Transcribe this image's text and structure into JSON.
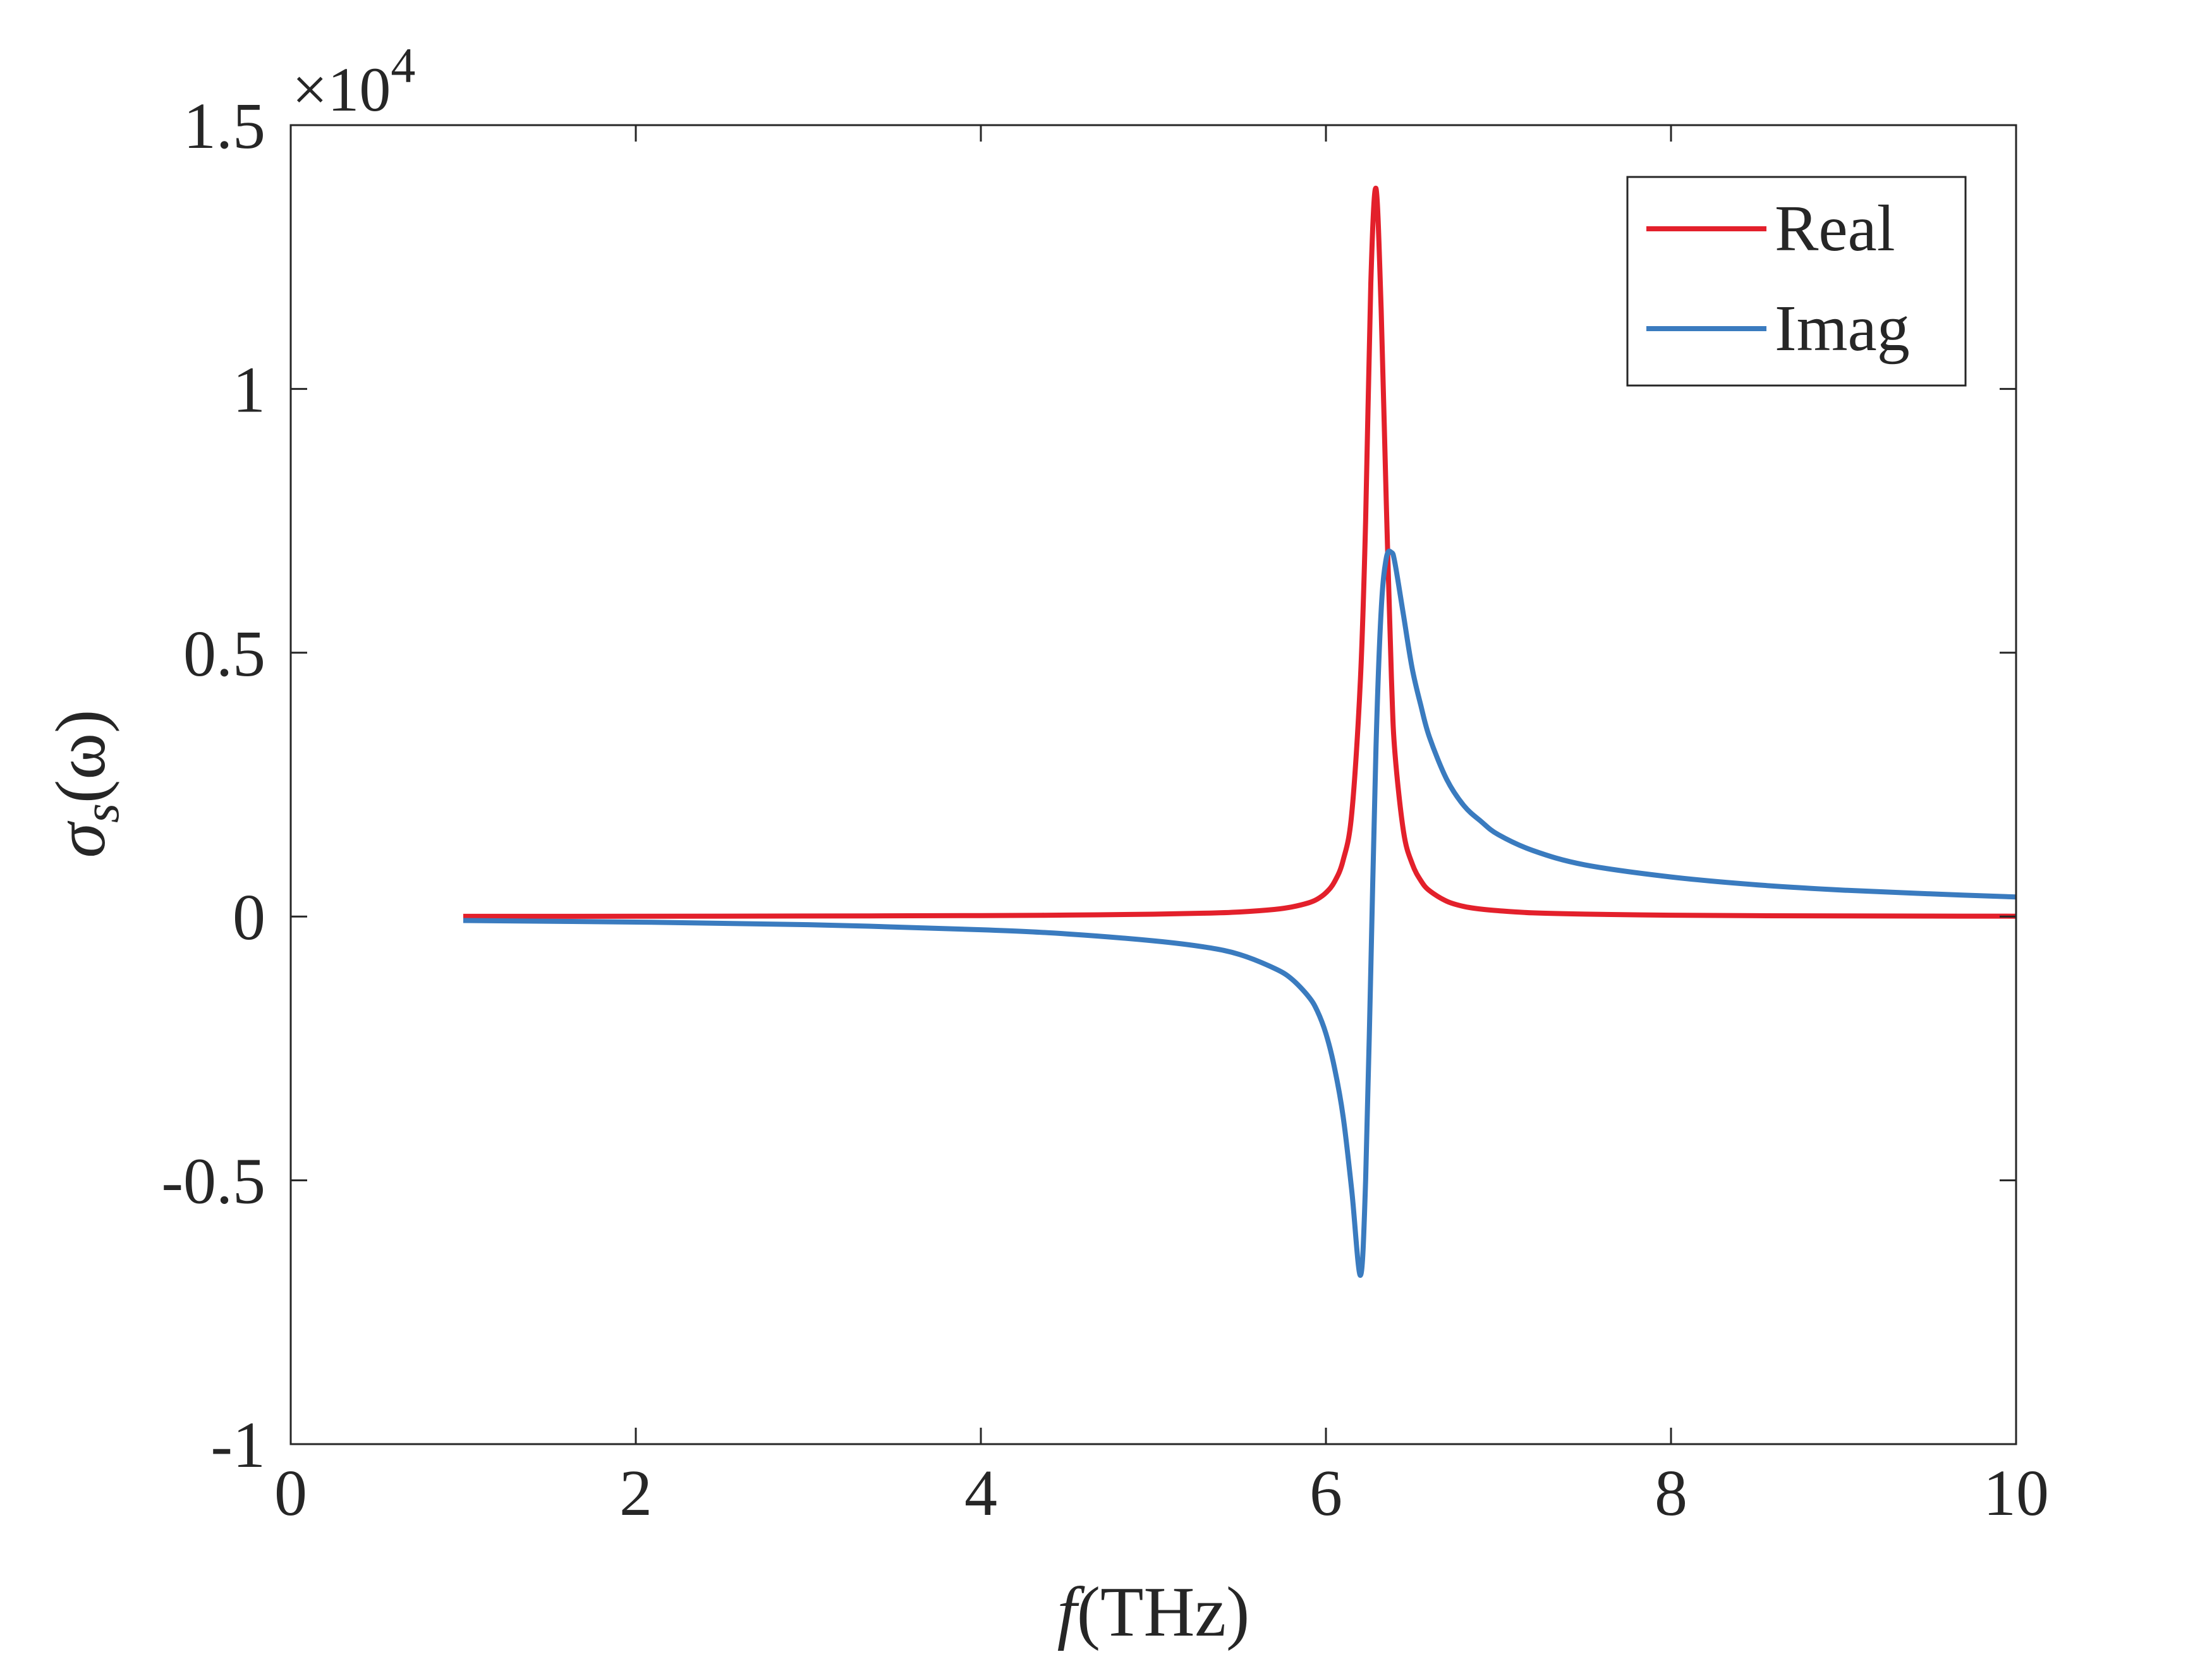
{
  "chart_data": {
    "type": "line",
    "xlabel": {
      "var": "f",
      "unit": "(THz)"
    },
    "ylabel": {
      "var": "σ",
      "sub": "s",
      "arg": "(ω)"
    },
    "exponent_label": {
      "prefix": "×10",
      "power": "4"
    },
    "xlim": [
      0,
      10
    ],
    "ylim": [
      -1,
      1.5
    ],
    "y_scale_factor": 10000,
    "x_ticks": [
      0,
      2,
      4,
      6,
      8,
      10
    ],
    "x_tick_labels": [
      "0",
      "2",
      "4",
      "6",
      "8",
      "10"
    ],
    "y_ticks": [
      -1,
      -0.5,
      0,
      0.5,
      1,
      1.5
    ],
    "y_tick_labels": [
      "-1",
      "-0.5",
      "0",
      "0.5",
      "1",
      "1.5"
    ],
    "grid": false,
    "legend_position": "top-right",
    "x": [
      1.0,
      2.0,
      3.0,
      4.0,
      4.5,
      5.0,
      5.3,
      5.5,
      5.7,
      5.8,
      5.9,
      5.95,
      6.0,
      6.05,
      6.1,
      6.15,
      6.2,
      6.23,
      6.26,
      6.29,
      6.32,
      6.35,
      6.38,
      6.4,
      6.45,
      6.5,
      6.55,
      6.6,
      6.7,
      6.8,
      6.9,
      7.0,
      7.2,
      7.5,
      8.0,
      8.5,
      9.0,
      9.5,
      10.0
    ],
    "series": [
      {
        "name": "Real",
        "color": "#e3202b",
        "values": [
          0.0003,
          0.0005,
          0.0009,
          0.0018,
          0.0027,
          0.0044,
          0.0063,
          0.0086,
          0.0134,
          0.018,
          0.026,
          0.033,
          0.045,
          0.066,
          0.107,
          0.196,
          0.45,
          0.75,
          1.2,
          1.38,
          1.15,
          0.78,
          0.45,
          0.31,
          0.16,
          0.1,
          0.068,
          0.049,
          0.029,
          0.019,
          0.014,
          0.011,
          0.007,
          0.0045,
          0.0025,
          0.0016,
          0.0011,
          0.0008,
          0.0006
        ]
      },
      {
        "name": "Imag",
        "color": "#3a7bbf",
        "values": [
          -0.0075,
          -0.0105,
          -0.0155,
          -0.025,
          -0.033,
          -0.046,
          -0.058,
          -0.072,
          -0.098,
          -0.118,
          -0.152,
          -0.179,
          -0.222,
          -0.287,
          -0.38,
          -0.52,
          -0.68,
          -0.5,
          -0.1,
          0.32,
          0.58,
          0.68,
          0.69,
          0.67,
          0.57,
          0.47,
          0.4,
          0.34,
          0.26,
          0.21,
          0.18,
          0.155,
          0.125,
          0.098,
          0.075,
          0.06,
          0.05,
          0.043,
          0.037
        ]
      }
    ]
  }
}
